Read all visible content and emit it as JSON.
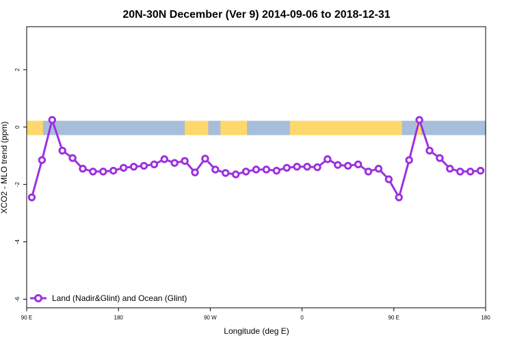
{
  "chart_data": {
    "type": "line",
    "title": "20N-30N December (Ver 9)   2014-09-06 to 2018-12-31",
    "xlabel": "Longitude (deg E)",
    "ylabel": "XCO2 - MLO trend (ppm)",
    "xlim": [
      90,
      540
    ],
    "ylim": [
      -6.3,
      3.5
    ],
    "xticks": [
      {
        "value": 90,
        "label": "90 E"
      },
      {
        "value": 180,
        "label": "180"
      },
      {
        "value": 270,
        "label": "90 W"
      },
      {
        "value": 360,
        "label": "0"
      },
      {
        "value": 450,
        "label": "90 E"
      },
      {
        "value": 540,
        "label": "180"
      }
    ],
    "yticks": [
      {
        "value": 2,
        "label": "2"
      },
      {
        "value": 0,
        "label": "0"
      },
      {
        "value": -2,
        "label": "-2"
      },
      {
        "value": -4,
        "label": "-4"
      },
      {
        "value": -6,
        "label": "-6"
      }
    ],
    "legend": {
      "position": "bottom-left"
    },
    "colors": {
      "series": "#9b30e0",
      "ocean": "#a6bddb",
      "land": "#ffd86b"
    },
    "band": {
      "y_min": -0.28,
      "y_max": 0.22,
      "land_ranges": [
        [
          90,
          106
        ],
        [
          245,
          268
        ],
        [
          280,
          306
        ],
        [
          348,
          458
        ],
        [
          472,
          477
        ]
      ]
    },
    "series": [
      {
        "name": "Land (Nadir&Glint) and Ocean (Glint)",
        "x": [
          95,
          105,
          115,
          125,
          135,
          145,
          155,
          165,
          175,
          185,
          195,
          205,
          215,
          225,
          235,
          245,
          255,
          265,
          275,
          285,
          295,
          305,
          315,
          325,
          335,
          345,
          355,
          365,
          375,
          385,
          395,
          405,
          415,
          425,
          435,
          445,
          455,
          465,
          475,
          485,
          495,
          505,
          515,
          525,
          535
        ],
        "y": [
          -2.45,
          -1.15,
          0.25,
          -0.82,
          -1.08,
          -1.45,
          -1.55,
          -1.55,
          -1.52,
          -1.42,
          -1.38,
          -1.35,
          -1.3,
          -1.12,
          -1.25,
          -1.18,
          -1.58,
          -1.1,
          -1.48,
          -1.6,
          -1.65,
          -1.55,
          -1.48,
          -1.48,
          -1.52,
          -1.42,
          -1.38,
          -1.38,
          -1.4,
          -1.12,
          -1.32,
          -1.35,
          -1.3,
          -1.55,
          -1.45,
          -1.82,
          -2.45,
          -1.15,
          0.25,
          -0.82,
          -1.08,
          -1.45,
          -1.55,
          -1.55,
          -1.52
        ]
      }
    ]
  }
}
